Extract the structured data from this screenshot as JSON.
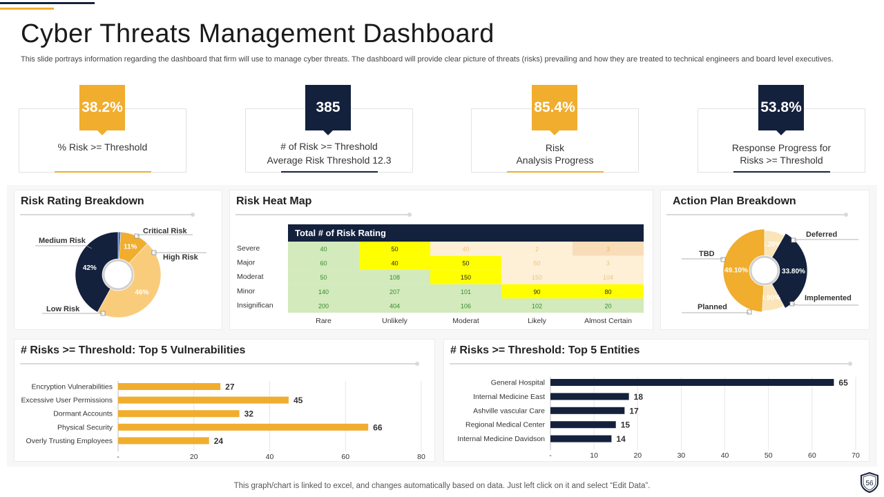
{
  "title": "Cyber Threats Management Dashboard",
  "subtitle": "This slide portrays information regarding the dashboard that firm will use to manage cyber threats. The dashboard will provide clear picture of threats (risks) prevailing and how they are treated to technical engineers and board level executives.",
  "colors": {
    "navy": "#14213d",
    "gold": "#f0ad2e",
    "light_gold": "#f9cc7c",
    "cream": "#fbe4b8"
  },
  "kpis": [
    {
      "value": "38.2%",
      "label_line1": "% Risk >= Threshold",
      "label_line2": ""
    },
    {
      "value": "385",
      "label_line1": "# of Risk >= Threshold",
      "label_line2": "Average Risk Threshold 12.3"
    },
    {
      "value": "85.4%",
      "label_line1": "Risk",
      "label_line2": "Analysis Progress"
    },
    {
      "value": "53.8%",
      "label_line1": "Response Progress for",
      "label_line2": "Risks >= Threshold"
    }
  ],
  "panels": {
    "risk_rating": "Risk  Rating Breakdown",
    "heat_map": "Risk  Heat Map",
    "action_plan": "Action Plan Breakdown",
    "vulnerabilities": "# Risks  >= Threshold: Top 5 Vulnerabilities",
    "entities": "# Risks  >= Threshold: Top 5 Entities"
  },
  "footer": "This graph/chart is linked to excel,  and changes automatically based on data. Just left click on it and select “Edit Data”.",
  "page_number": "56",
  "chart_data": [
    {
      "id": "risk_rating",
      "type": "pie",
      "title": "Risk  Rating Breakdown",
      "slices": [
        {
          "name": "Critical Risk",
          "value": 1,
          "label": ""
        },
        {
          "name": "High Risk",
          "value": 11,
          "label": "11%"
        },
        {
          "name": "Low Risk",
          "value": 46,
          "label": "46%"
        },
        {
          "name": "Medium Risk",
          "value": 42,
          "label": "42%"
        }
      ]
    },
    {
      "id": "heat_map",
      "type": "heatmap",
      "title": "Risk  Heat Map",
      "header": "Total # of Risk Rating",
      "rows": [
        "Severe",
        "Major",
        "Moderat",
        "Minor",
        "Insignifican"
      ],
      "columns": [
        "Rare",
        "Unlikely",
        "Moderat",
        "Likely",
        "Almost Certain"
      ],
      "values": [
        [
          "40",
          "50",
          "40",
          "2",
          "3"
        ],
        [
          "60",
          "40",
          "50",
          "50",
          "3"
        ],
        [
          "50",
          "108",
          "150",
          "150",
          "104"
        ],
        [
          "140",
          "207",
          "101",
          "90",
          "80"
        ],
        [
          "200",
          "404",
          "106",
          "102",
          "20"
        ]
      ],
      "levels": [
        [
          "green",
          "yellow",
          "cream",
          "cream",
          "peach"
        ],
        [
          "green",
          "yellow",
          "yellow",
          "cream",
          "cream"
        ],
        [
          "green",
          "green",
          "yellow",
          "cream",
          "cream"
        ],
        [
          "green",
          "green",
          "green",
          "yellow",
          "yellow"
        ],
        [
          "green",
          "green",
          "green",
          "green",
          "green"
        ]
      ]
    },
    {
      "id": "action_plan",
      "type": "pie",
      "title": "Action Plan Breakdown",
      "slices": [
        {
          "name": "Deferred",
          "value": 8.2,
          "label": "8.20%"
        },
        {
          "name": "Implemented",
          "value": 33.8,
          "label": "33.80%"
        },
        {
          "name": "Planned",
          "value": 8.9,
          "label": "8.90%"
        },
        {
          "name": "TBD",
          "value": 49.1,
          "label": "49.10%"
        }
      ]
    },
    {
      "id": "vulnerabilities",
      "type": "bar",
      "orientation": "horizontal",
      "title": "# Risks  >= Threshold: Top 5 Vulnerabilities",
      "categories": [
        "Encryption Vulnerabilities",
        "Excessive User Permissions",
        "Dormant Accounts",
        "Physical Security",
        "Overly Trusting Employees"
      ],
      "values": [
        27,
        45,
        32,
        66,
        24
      ],
      "xlim": [
        0,
        80
      ],
      "ticks": [
        "-",
        "20",
        "40",
        "60",
        "80"
      ]
    },
    {
      "id": "entities",
      "type": "bar",
      "orientation": "horizontal",
      "title": "# Risks  >= Threshold: Top 5 Entities",
      "categories": [
        "General Hospital",
        "Internal Medicine East",
        "Ashville vascular Care",
        "Regional Medical Center",
        "Internal Medicine Davidson"
      ],
      "values": [
        65,
        18,
        17,
        15,
        14
      ],
      "xlim": [
        0,
        70
      ],
      "ticks": [
        "-",
        "10",
        "20",
        "30",
        "40",
        "50",
        "60",
        "70"
      ]
    }
  ]
}
